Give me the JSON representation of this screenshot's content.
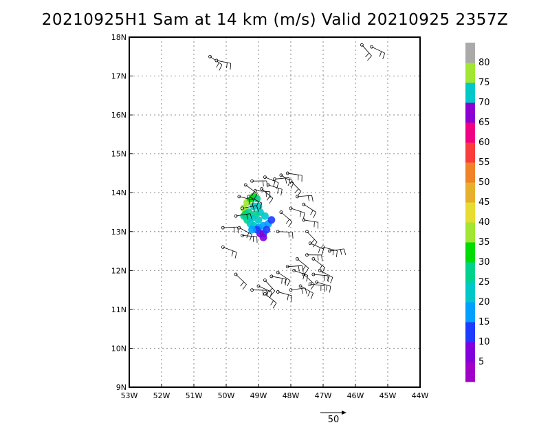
{
  "title": "20210925H1 Sam at 14 km (m/s) Valid 20210925 2357Z",
  "chart_data": {
    "type": "scatter",
    "title": "20210925H1 Sam at 14 km (m/s) Valid 20210925 2357Z",
    "xlabel": "",
    "ylabel": "",
    "xlim": [
      -53,
      -44
    ],
    "ylim": [
      9,
      18
    ],
    "grid": true,
    "x_ticks": [
      -53,
      -52,
      -51,
      -50,
      -49,
      -48,
      -47,
      -46,
      -45,
      -44
    ],
    "x_tick_labels": [
      "53W",
      "52W",
      "51W",
      "50W",
      "49W",
      "48W",
      "47W",
      "46W",
      "45W",
      "44W"
    ],
    "y_ticks": [
      9,
      10,
      11,
      12,
      13,
      14,
      15,
      16,
      17,
      18
    ],
    "y_tick_labels": [
      "9N",
      "10N",
      "11N",
      "12N",
      "13N",
      "14N",
      "15N",
      "16N",
      "17N",
      "18N"
    ],
    "colorbar": {
      "colors": [
        "#a000c8",
        "#8200dc",
        "#1e3cff",
        "#00a0ff",
        "#00c8c8",
        "#00d28c",
        "#00dc00",
        "#a0e632",
        "#e6dc32",
        "#e6af2d",
        "#f08228",
        "#fa3c3c",
        "#f00082",
        "#8c00d2",
        "#00c8c8",
        "#a0e632",
        "#aaaaaa"
      ],
      "labels": [
        "5",
        "10",
        "15",
        "20",
        "25",
        "30",
        "35",
        "40",
        "45",
        "50",
        "55",
        "60",
        "65",
        "70",
        "75",
        "80"
      ]
    },
    "reference_vector": {
      "label": "50",
      "value": 50
    },
    "series": [
      {
        "points": [
          [
            -49.35,
            13.75,
            38
          ],
          [
            -49.25,
            13.85,
            33
          ],
          [
            -49.15,
            13.9,
            30
          ],
          [
            -49.05,
            13.85,
            28
          ],
          [
            -49.45,
            13.6,
            35
          ],
          [
            -49.4,
            13.45,
            30
          ],
          [
            -49.35,
            13.3,
            25
          ],
          [
            -49.25,
            13.2,
            22
          ],
          [
            -49.15,
            13.15,
            20
          ],
          [
            -49.0,
            13.1,
            18
          ],
          [
            -48.85,
            13.15,
            17
          ],
          [
            -48.7,
            13.2,
            15
          ],
          [
            -48.75,
            13.05,
            12
          ],
          [
            -48.85,
            12.95,
            10
          ],
          [
            -48.95,
            12.95,
            8
          ],
          [
            -48.85,
            12.85,
            6
          ],
          [
            -49.05,
            13.05,
            14
          ],
          [
            -49.2,
            13.05,
            19
          ],
          [
            -49.3,
            13.5,
            27
          ],
          [
            -49.15,
            13.65,
            24
          ],
          [
            -49.0,
            13.65,
            22
          ],
          [
            -48.95,
            13.5,
            24
          ],
          [
            -48.8,
            13.4,
            21
          ],
          [
            -49.1,
            13.45,
            26
          ],
          [
            -49.2,
            13.35,
            23
          ],
          [
            -49.0,
            13.3,
            20
          ],
          [
            -48.6,
            13.3,
            12
          ],
          [
            -49.45,
            13.4,
            28
          ]
        ]
      }
    ],
    "barbs": [
      [
        -49.5,
        13.6
      ],
      [
        -49.3,
        13.9
      ],
      [
        -49.1,
        14.05
      ],
      [
        -48.9,
        14.1
      ],
      [
        -48.7,
        14.2
      ],
      [
        -48.5,
        14.35
      ],
      [
        -48.3,
        14.45
      ],
      [
        -48.1,
        14.5
      ],
      [
        -48.0,
        14.3
      ],
      [
        -48.8,
        14.4
      ],
      [
        -49.2,
        14.3
      ],
      [
        -49.4,
        14.2
      ],
      [
        -49.6,
        13.9
      ],
      [
        -49.7,
        13.4
      ],
      [
        -49.6,
        13.1
      ],
      [
        -49.5,
        12.9
      ],
      [
        -48.3,
        13.5
      ],
      [
        -48.0,
        13.6
      ],
      [
        -47.8,
        13.9
      ],
      [
        -47.6,
        13.7
      ],
      [
        -47.6,
        13.3
      ],
      [
        -47.5,
        13.0
      ],
      [
        -47.4,
        12.7
      ],
      [
        -47.5,
        12.4
      ],
      [
        -47.3,
        12.3
      ],
      [
        -47.0,
        12.6
      ],
      [
        -46.8,
        12.5
      ],
      [
        -47.1,
        12.0
      ],
      [
        -47.3,
        11.9
      ],
      [
        -47.6,
        11.9
      ],
      [
        -47.9,
        12.0
      ],
      [
        -48.1,
        12.1
      ],
      [
        -48.4,
        11.95
      ],
      [
        -48.6,
        11.85
      ],
      [
        -48.8,
        11.75
      ],
      [
        -49.0,
        11.6
      ],
      [
        -49.2,
        11.5
      ],
      [
        -48.8,
        11.4
      ],
      [
        -48.4,
        11.45
      ],
      [
        -48.0,
        11.5
      ],
      [
        -47.7,
        11.6
      ],
      [
        -47.4,
        11.65
      ],
      [
        -49.7,
        11.9
      ],
      [
        -50.1,
        12.6
      ],
      [
        -50.1,
        13.1
      ],
      [
        -50.5,
        17.5
      ],
      [
        -50.3,
        17.4
      ],
      [
        -45.8,
        17.8
      ],
      [
        -45.5,
        17.75
      ],
      [
        -48.4,
        13.0
      ],
      [
        -47.8,
        12.3
      ],
      [
        -47.2,
        11.7
      ]
    ]
  }
}
